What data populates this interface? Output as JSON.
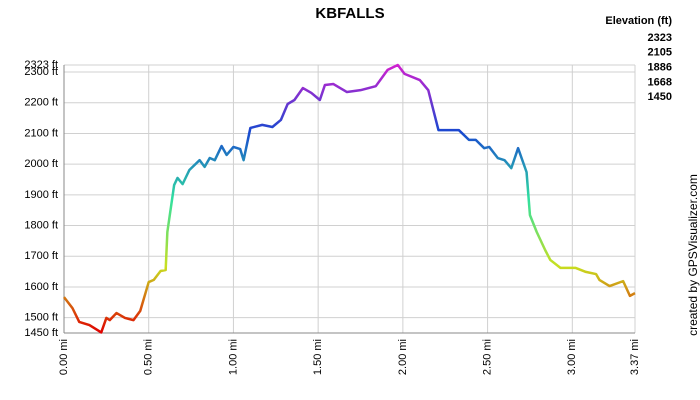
{
  "chart_data": {
    "type": "line",
    "title": "KBFALLS",
    "credit": "created by GPSVisualizer.com",
    "legend": {
      "title": "Elevation (ft)",
      "entries": [
        {
          "value": 2323,
          "color": "#d020d0"
        },
        {
          "value": 2105,
          "color": "#1848d0"
        },
        {
          "value": 1886,
          "color": "#30e0a0"
        },
        {
          "value": 1668,
          "color": "#c8e020"
        },
        {
          "value": 1450,
          "color": "#e00000"
        }
      ]
    },
    "grid": true,
    "line_width": 2.5,
    "xlim": [
      0,
      3.37
    ],
    "ylim": [
      1450,
      2323
    ],
    "xticks": [
      {
        "value": 0,
        "label": "0.00 mi"
      },
      {
        "value": 0.5,
        "label": "0.50 mi"
      },
      {
        "value": 1,
        "label": "1.00 mi"
      },
      {
        "value": 1.5,
        "label": "1.50 mi"
      },
      {
        "value": 2,
        "label": "2.00 mi"
      },
      {
        "value": 2.5,
        "label": "2.50 mi"
      },
      {
        "value": 3,
        "label": "3.00 mi"
      },
      {
        "value": 3.37,
        "label": "3.37 mi"
      }
    ],
    "yticks": [
      {
        "value": 1450,
        "label": "1450 ft"
      },
      {
        "value": 1500,
        "label": "1500 ft"
      },
      {
        "value": 1600,
        "label": "1600 ft"
      },
      {
        "value": 1700,
        "label": "1700 ft"
      },
      {
        "value": 1800,
        "label": "1800 ft"
      },
      {
        "value": 1900,
        "label": "1900 ft"
      },
      {
        "value": 2000,
        "label": "2000 ft"
      },
      {
        "value": 2100,
        "label": "2100 ft"
      },
      {
        "value": 2200,
        "label": "2200 ft"
      },
      {
        "value": 2300,
        "label": "2300 ft"
      },
      {
        "value": 2323,
        "label": "2323 ft"
      }
    ],
    "x": [
      0,
      0.05,
      0.09,
      0.15,
      0.22,
      0.25,
      0.27,
      0.31,
      0.36,
      0.41,
      0.45,
      0.5,
      0.53,
      0.57,
      0.6,
      0.61,
      0.65,
      0.67,
      0.7,
      0.74,
      0.8,
      0.83,
      0.86,
      0.89,
      0.93,
      0.96,
      1.0,
      1.04,
      1.06,
      1.1,
      1.17,
      1.23,
      1.28,
      1.32,
      1.36,
      1.41,
      1.46,
      1.51,
      1.54,
      1.59,
      1.67,
      1.75,
      1.84,
      1.91,
      1.97,
      2.01,
      2.1,
      2.15,
      2.21,
      2.33,
      2.39,
      2.43,
      2.48,
      2.51,
      2.56,
      2.6,
      2.64,
      2.68,
      2.73,
      2.75,
      2.79,
      2.84,
      2.87,
      2.93,
      3.02,
      3.08,
      3.14,
      3.16,
      3.22,
      3.3,
      3.34,
      3.37
    ],
    "values": [
      1567,
      1531,
      1486,
      1476,
      1452,
      1499,
      1492,
      1515,
      1499,
      1492,
      1522,
      1616,
      1623,
      1652,
      1655,
      1779,
      1932,
      1955,
      1935,
      1981,
      2013,
      1991,
      2020,
      2013,
      2059,
      2030,
      2056,
      2049,
      2013,
      2118,
      2128,
      2121,
      2144,
      2196,
      2209,
      2248,
      2232,
      2209,
      2258,
      2261,
      2235,
      2241,
      2254,
      2307,
      2323,
      2294,
      2274,
      2241,
      2111,
      2111,
      2079,
      2079,
      2052,
      2056,
      2020,
      2013,
      1987,
      2052,
      1974,
      1834,
      1779,
      1720,
      1688,
      1662,
      1662,
      1649,
      1642,
      1623,
      1603,
      1619,
      1571,
      1580
    ]
  }
}
